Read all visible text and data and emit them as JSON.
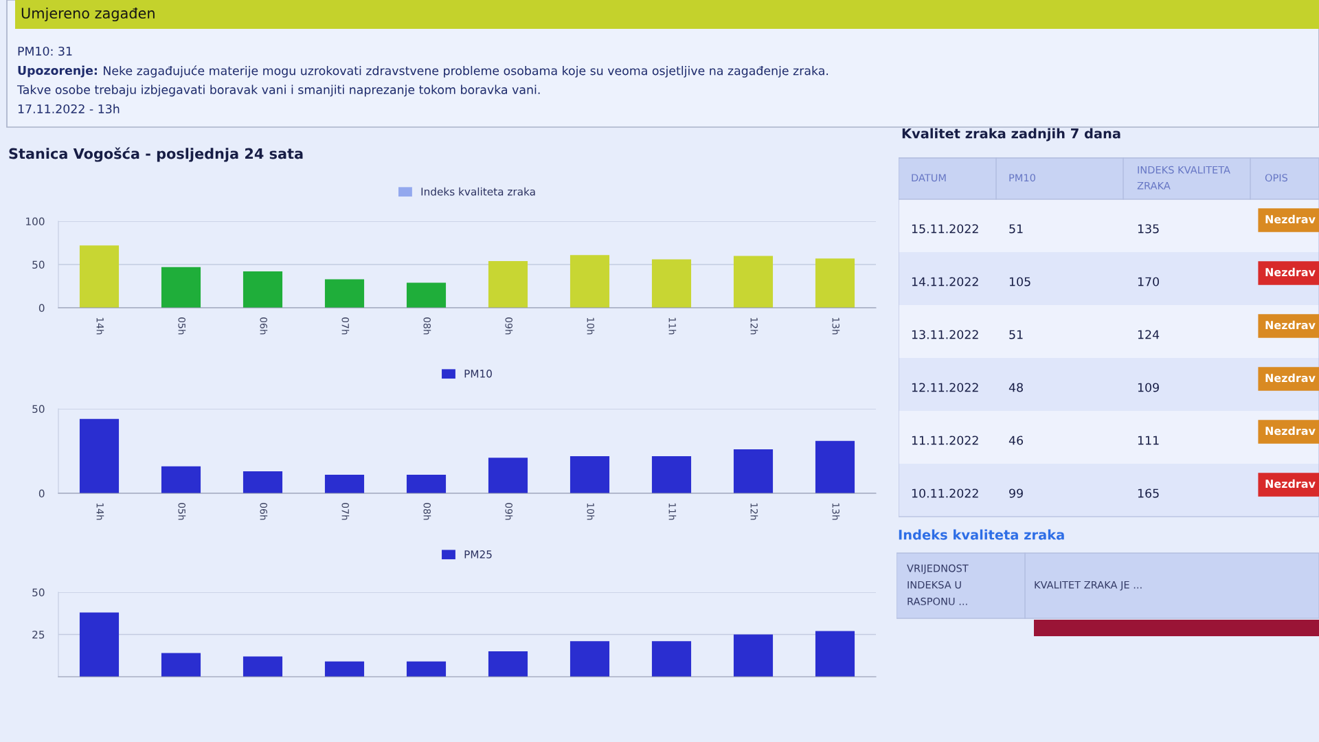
{
  "chart_data": [
    {
      "type": "other",
      "title": "Umjereno zagađen",
      "color": "#c4d22c",
      "annotations": [
        "PM10: 31",
        "Upozorenje:",
        "Neke zagađujuće materije mogu uzrokovati zdravstvene probleme osobama koje su veoma osjetljive na zagađenje zraka.",
        "Takve osobe trebaju izbjegavati boravak vani i smanjiti naprezanje tokom boravka vani.",
        "17.11.2022 - 13h"
      ]
    },
    {
      "type": "bar",
      "title": "Stanica Vogošća - posljednja 24 sata",
      "categories": [
        "14h",
        "05h",
        "06h",
        "07h",
        "08h",
        "09h",
        "10h",
        "11h",
        "12h",
        "13h"
      ],
      "series": [
        {
          "name": "Indeks kvaliteta zraka",
          "color": "#93a8ee",
          "colors": [
            "#c8d633",
            "#1fae3a",
            "#1fae3a",
            "#1fae3a",
            "#1fae3a",
            "#c8d633",
            "#c8d633",
            "#c8d633",
            "#c8d633",
            "#c8d633"
          ],
          "values": [
            72,
            47,
            42,
            33,
            29,
            54,
            61,
            56,
            60,
            57
          ]
        }
      ],
      "ylim": [
        0,
        100
      ],
      "yticks": [
        0,
        50,
        100
      ],
      "grid": "y",
      "legend": "top"
    },
    {
      "type": "bar",
      "categories": [
        "14h",
        "05h",
        "06h",
        "07h",
        "08h",
        "09h",
        "10h",
        "11h",
        "12h",
        "13h"
      ],
      "series": [
        {
          "name": "PM10",
          "color": "#2a2ed0",
          "values": [
            44,
            16,
            13,
            11,
            11,
            21,
            22,
            22,
            26,
            31
          ]
        }
      ],
      "ylim": [
        0,
        50
      ],
      "yticks": [
        0,
        50
      ],
      "grid": "y",
      "legend": "top"
    },
    {
      "type": "bar",
      "categories": [
        null,
        null,
        null,
        null,
        null,
        null,
        null,
        null,
        null,
        null
      ],
      "series": [
        {
          "name": "PM25",
          "color": "#2a2ed0",
          "values": [
            38,
            14,
            12,
            9,
            9,
            15,
            21,
            21,
            25,
            27
          ]
        }
      ],
      "ylim": [
        0,
        50
      ],
      "yticks": [
        25,
        50
      ],
      "grid": "y",
      "legend": "top",
      "tick_labels": "y"
    },
    {
      "type": "heatmap",
      "title": "Kvalitet zraka zadnjih 7 dana",
      "ylabel": "DATUM",
      "categories": [
        "PM10",
        "INDEKS KVALITETA ZRAKA",
        "OPIS"
      ],
      "y_categories": [
        "15.11.2022",
        "14.11.2022",
        "13.11.2022",
        "12.11.2022",
        "11.11.2022",
        "10.11.2022"
      ],
      "cells": [
        [
          null,
          null,
          null
        ],
        [
          null,
          null,
          null
        ],
        [
          null,
          null,
          null
        ],
        [
          null,
          null,
          null
        ],
        [
          null,
          null,
          null
        ],
        [
          null,
          null,
          null
        ]
      ],
      "cell_labels": [
        [
          "51",
          "135",
          "Nezdrav"
        ],
        [
          "105",
          "170",
          "Nezdrav"
        ],
        [
          "51",
          "124",
          "Nezdrav"
        ],
        [
          "48",
          "109",
          "Nezdrav"
        ],
        [
          "46",
          "111",
          "Nezdrav"
        ],
        [
          "99",
          "165",
          "Nezdrav"
        ]
      ],
      "colors": [
        [
          null,
          null,
          "#d98a22"
        ],
        [
          null,
          null,
          "#d82a2a"
        ],
        [
          null,
          null,
          "#d98a22"
        ],
        [
          null,
          null,
          "#d98a22"
        ],
        [
          null,
          null,
          "#d98a22"
        ],
        [
          null,
          null,
          "#d82a2a"
        ]
      ]
    },
    {
      "type": "other",
      "title": "Indeks kvaliteta zraka",
      "categories": [
        "VRIJEDNOST INDEKSA U RASPONU ...",
        "KVALITET ZRAKA JE ..."
      ]
    }
  ]
}
